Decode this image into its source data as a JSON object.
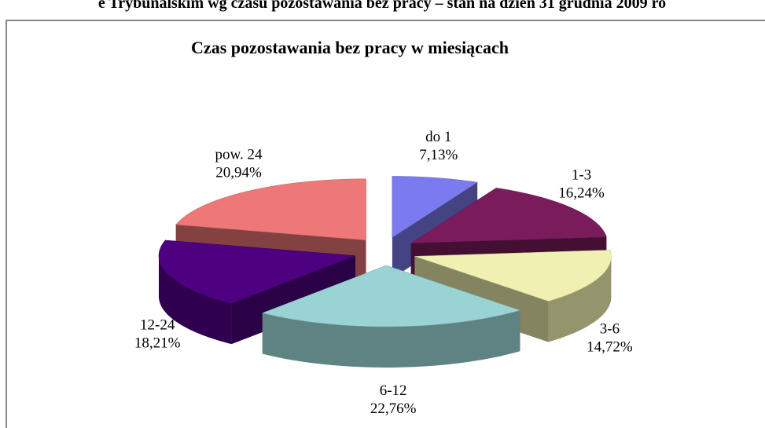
{
  "header": {
    "text": "e Trybunalskim wg czasu pozostawania bez pracy – stan na dzień 31 grudnia 2009 ro"
  },
  "chart_data": {
    "type": "pie3d",
    "title": "Czas pozostawania bez pracy w miesiącach",
    "categories": [
      "do 1",
      "1-3",
      "3-6",
      "6-12",
      "12-24",
      "pow. 24"
    ],
    "values": [
      7.13,
      16.24,
      14.72,
      22.76,
      18.21,
      20.94
    ],
    "value_labels": [
      "7,13%",
      "16,24%",
      "14,72%",
      "22,76%",
      "18,21%",
      "20,94%"
    ],
    "colors": [
      "#7b7bef",
      "#7a1c5c",
      "#f0f0b0",
      "#99d3d3",
      "#4d0080",
      "#ee7777"
    ]
  }
}
